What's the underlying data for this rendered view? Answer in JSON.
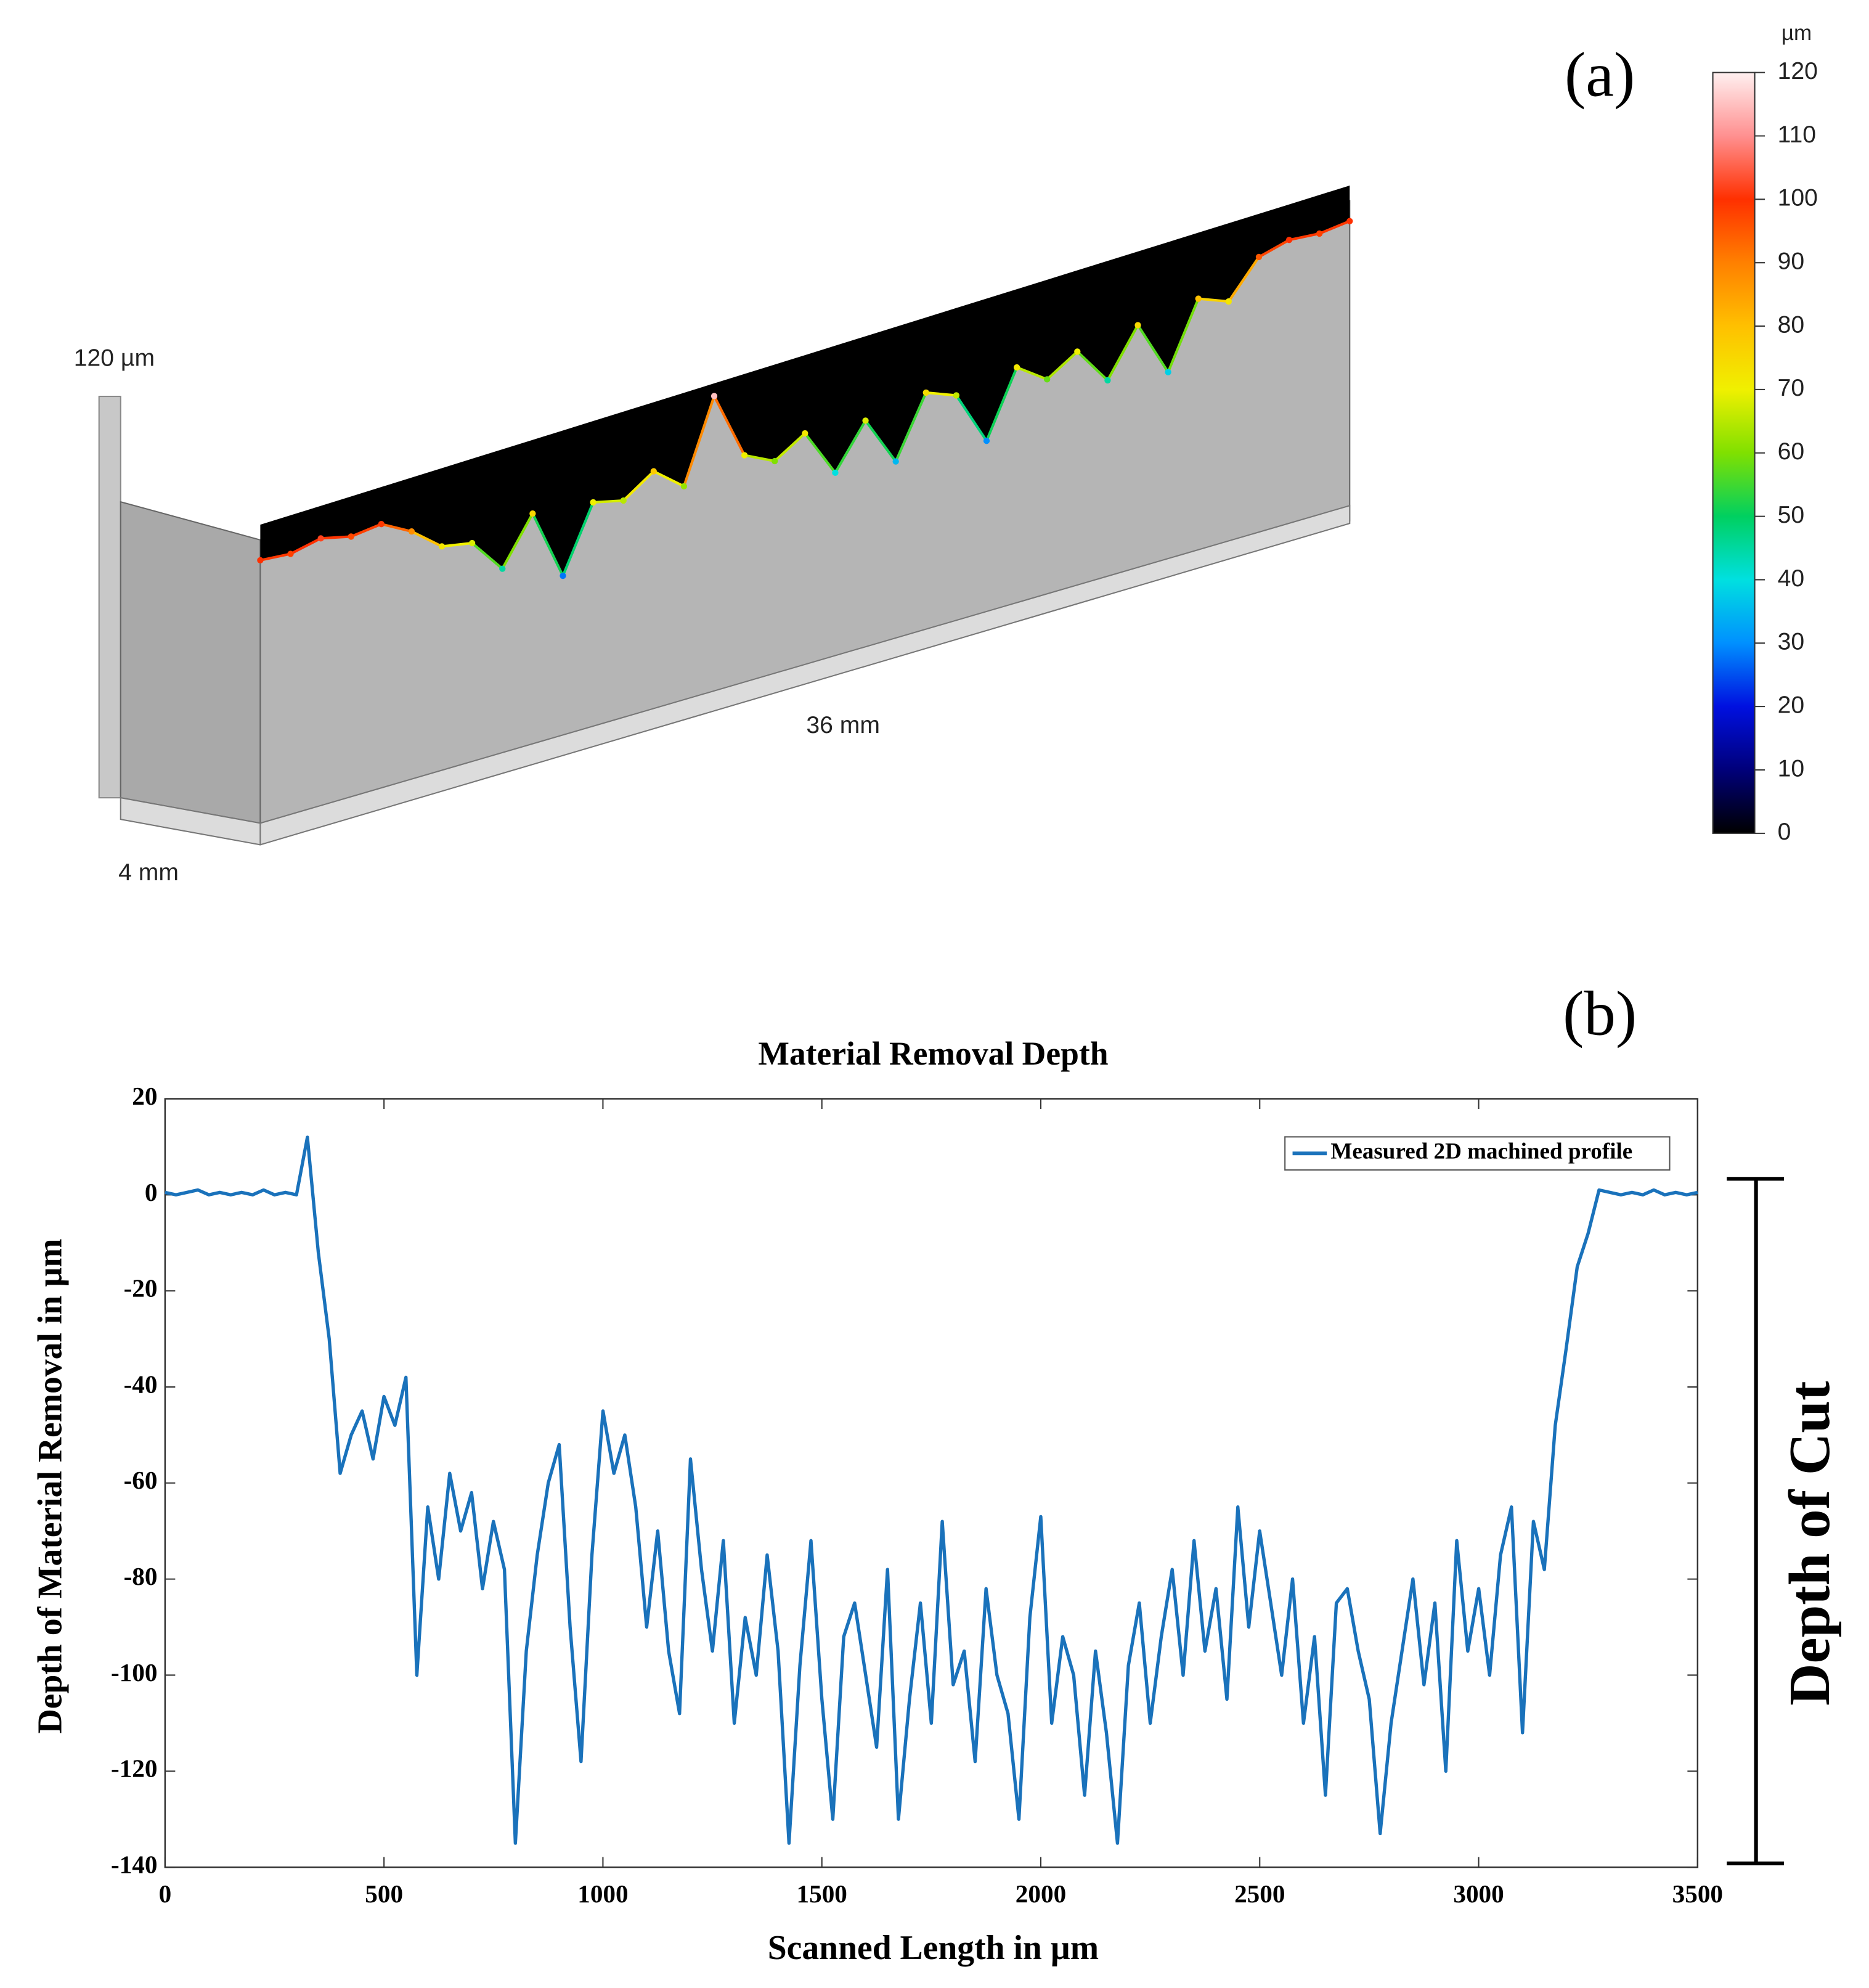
{
  "chart_data": [
    {
      "type": "surface",
      "panel_label": "(a)",
      "z_axis_label": "120 µm",
      "x_axis_label": "36 mm",
      "y_axis_label": "4 mm",
      "colorbar_label": "µm",
      "x": [
        0,
        1,
        2,
        3,
        4,
        5,
        6,
        7,
        8,
        9,
        10,
        11,
        12,
        13,
        14,
        15,
        16,
        17,
        18,
        19,
        20,
        21,
        22,
        23,
        24,
        25,
        26,
        27,
        28,
        29,
        30,
        31,
        32,
        33,
        34,
        35,
        36
      ],
      "z": [
        100,
        98,
        102,
        97,
        99,
        88,
        72,
        68,
        45,
        75,
        28,
        70,
        65,
        78,
        62,
        115,
        70,
        60,
        72,
        40,
        68,
        35,
        74,
        66,
        30,
        72,
        58,
        70,
        45,
        75,
        38,
        80,
        72,
        95,
        100,
        98,
        100
      ],
      "zlim": [
        0,
        120
      ],
      "zticks": [
        0,
        10,
        20,
        30,
        40,
        50,
        60,
        70,
        80,
        90,
        100,
        110,
        120
      ],
      "colormap": [
        "#000000",
        "#00007a",
        "#0010e0",
        "#0090ff",
        "#00e0e0",
        "#00d060",
        "#80e000",
        "#f0f000",
        "#ffc000",
        "#ff8000",
        "#ff3000",
        "#ff9090",
        "#fff0f0"
      ]
    },
    {
      "type": "line",
      "panel_label": "(b)",
      "title": "Material Removal Depth",
      "xlabel": "Scanned Length in µm",
      "ylabel": "Depth of Material Removal in µm",
      "annotation": "Depth of Cut",
      "legend": "upper right",
      "grid": false,
      "xlim": [
        0,
        3500
      ],
      "xticks": [
        0,
        500,
        1000,
        1500,
        2000,
        2500,
        3000,
        3500
      ],
      "ylim": [
        -140,
        20
      ],
      "yticks": [
        20,
        0,
        -20,
        -40,
        -60,
        -80,
        -100,
        -120,
        -140
      ],
      "x": [
        0,
        25,
        50,
        75,
        100,
        125,
        150,
        175,
        200,
        225,
        250,
        275,
        300,
        325,
        350,
        375,
        400,
        425,
        450,
        475,
        500,
        525,
        550,
        575,
        600,
        625,
        650,
        675,
        700,
        725,
        750,
        775,
        800,
        825,
        850,
        875,
        900,
        925,
        950,
        975,
        1000,
        1025,
        1050,
        1075,
        1100,
        1125,
        1150,
        1175,
        1200,
        1225,
        1250,
        1275,
        1300,
        1325,
        1350,
        1375,
        1400,
        1425,
        1450,
        1475,
        1500,
        1525,
        1550,
        1575,
        1600,
        1625,
        1650,
        1675,
        1700,
        1725,
        1750,
        1775,
        1800,
        1825,
        1850,
        1875,
        1900,
        1925,
        1950,
        1975,
        2000,
        2025,
        2050,
        2075,
        2100,
        2125,
        2150,
        2175,
        2200,
        2225,
        2250,
        2275,
        2300,
        2325,
        2350,
        2375,
        2400,
        2425,
        2450,
        2475,
        2500,
        2525,
        2550,
        2575,
        2600,
        2625,
        2650,
        2675,
        2700,
        2725,
        2750,
        2775,
        2800,
        2825,
        2850,
        2875,
        2900,
        2925,
        2950,
        2975,
        3000,
        3025,
        3050,
        3075,
        3100,
        3125,
        3150,
        3175,
        3200,
        3225,
        3250,
        3275,
        3300,
        3325,
        3350,
        3375,
        3400,
        3425,
        3450,
        3475,
        3500
      ],
      "series": [
        {
          "name": "Measured 2D machined profile",
          "color": "#1a72bb",
          "values": [
            0.5,
            0,
            0.5,
            1,
            0,
            0.5,
            0,
            0.5,
            0,
            1,
            0,
            0.5,
            0,
            12,
            -12,
            -30,
            -58,
            -50,
            -45,
            -55,
            -42,
            -48,
            -38,
            -100,
            -65,
            -80,
            -58,
            -70,
            -62,
            -82,
            -68,
            -78,
            -135,
            -95,
            -75,
            -60,
            -52,
            -90,
            -118,
            -75,
            -45,
            -58,
            -50,
            -65,
            -90,
            -70,
            -95,
            -108,
            -55,
            -78,
            -95,
            -72,
            -110,
            -88,
            -100,
            -75,
            -95,
            -135,
            -98,
            -72,
            -105,
            -130,
            -92,
            -85,
            -100,
            -115,
            -78,
            -130,
            -105,
            -85,
            -110,
            -68,
            -102,
            -95,
            -118,
            -82,
            -100,
            -108,
            -130,
            -88,
            -67,
            -110,
            -92,
            -100,
            -125,
            -95,
            -112,
            -135,
            -98,
            -85,
            -110,
            -92,
            -78,
            -100,
            -72,
            -95,
            -82,
            -105,
            -65,
            -90,
            -70,
            -85,
            -100,
            -80,
            -110,
            -92,
            -125,
            -85,
            -82,
            -95,
            -105,
            -133,
            -110,
            -95,
            -80,
            -102,
            -85,
            -120,
            -72,
            -95,
            -82,
            -100,
            -75,
            -65,
            -112,
            -68,
            -78,
            -48,
            -32,
            -15,
            -8,
            1,
            0.5,
            0,
            0.5,
            0,
            1,
            0,
            0.5,
            0,
            0.5
          ]
        }
      ]
    }
  ]
}
